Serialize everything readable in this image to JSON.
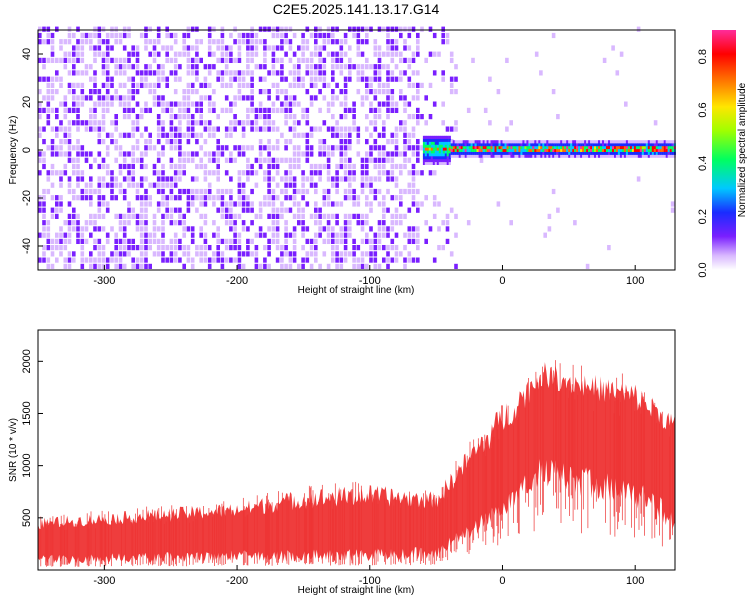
{
  "title": "C2E5.2025.141.13.17.G14",
  "chart_data": [
    {
      "type": "heatmap",
      "xlabel": "Height of straight line (km)",
      "ylabel": "Frequency (Hz)",
      "xlim": [
        -350,
        130
      ],
      "ylim": [
        -50,
        50
      ],
      "xticks": [
        -300,
        -200,
        -100,
        0,
        100
      ],
      "yticks": [
        -40,
        -20,
        0,
        20,
        40
      ],
      "colorbar": {
        "label": "Normalized spectral amplitude",
        "range": [
          0.0,
          0.9
        ],
        "ticks": [
          0.0,
          0.2,
          0.4,
          0.6,
          0.8
        ],
        "colormap": "rainbow (white-purple-blue-cyan-green-yellow-red-magenta)"
      },
      "regions": [
        {
          "x_range": [
            -350,
            -65
          ],
          "description": "broadband noise across all frequencies",
          "typical_amplitude": 0.1
        },
        {
          "x_range": [
            -65,
            -35
          ],
          "description": "transition, fading noise",
          "typical_amplitude": 0.05
        },
        {
          "x_range": [
            -60,
            130
          ],
          "description": "narrow signal band centered near 0-1 Hz",
          "frequency_center": 0.5,
          "typical_amplitude": 0.35,
          "peak_amplitude": 0.85
        }
      ]
    },
    {
      "type": "line",
      "xlabel": "Height of straight line (km)",
      "ylabel": "SNR (10 * v/v)",
      "xlim": [
        -350,
        130
      ],
      "ylim": [
        0,
        2300
      ],
      "xticks": [
        -300,
        -200,
        -100,
        0,
        100
      ],
      "yticks": [
        500,
        1000,
        1500,
        2000
      ],
      "color": "#ee3333",
      "series": [
        {
          "name": "",
          "x": [
            -350,
            -300,
            -250,
            -200,
            -150,
            -100,
            -50,
            -30,
            0,
            30,
            60,
            100,
            130
          ],
          "mean": [
            250,
            280,
            300,
            320,
            340,
            360,
            380,
            600,
            900,
            1450,
            1350,
            1200,
            1000
          ],
          "upper": [
            500,
            550,
            600,
            650,
            780,
            820,
            750,
            1100,
            1600,
            2000,
            1900,
            1800,
            1500
          ],
          "lower": [
            50,
            60,
            70,
            80,
            80,
            80,
            100,
            250,
            500,
            800,
            700,
            600,
            350
          ]
        }
      ]
    }
  ]
}
